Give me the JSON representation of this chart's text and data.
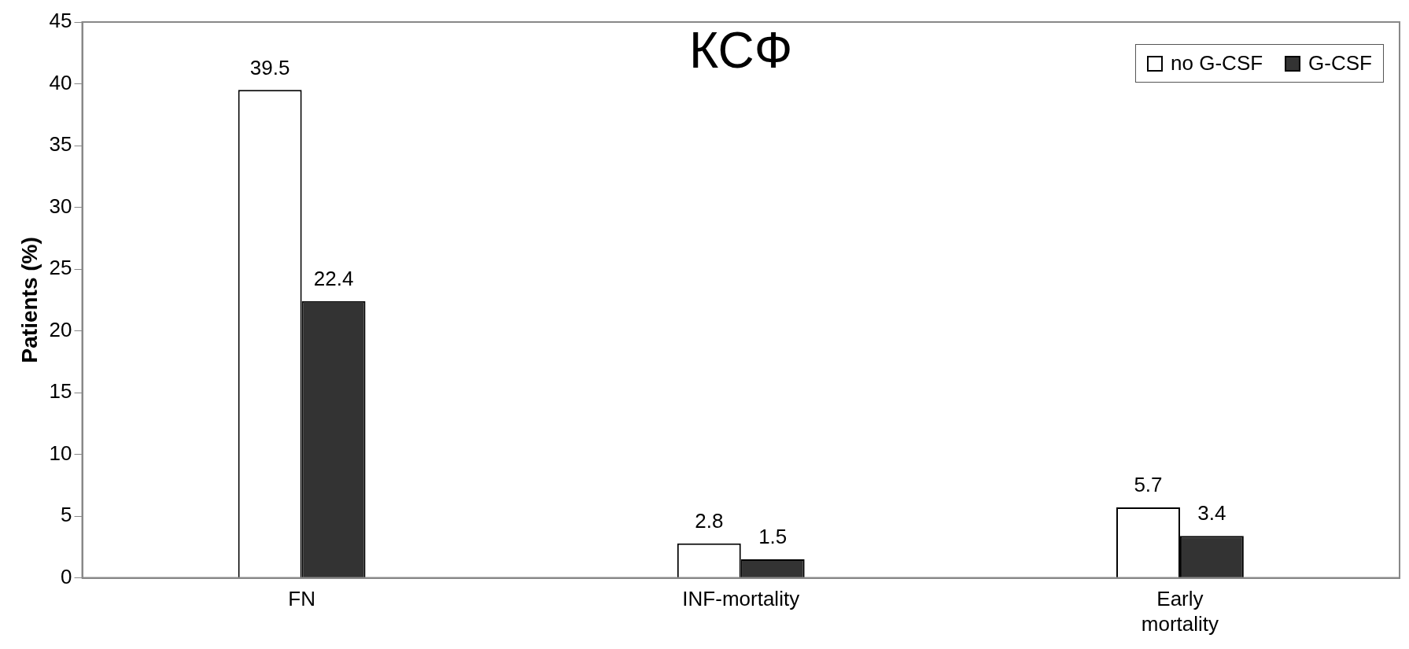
{
  "chart_data": {
    "type": "bar",
    "title": "КСФ",
    "ylabel": "Patients (%)",
    "categories": [
      "FN",
      "INF-mortality",
      "Early mortality"
    ],
    "series": [
      {
        "name": "no G-CSF",
        "color": "#ffffff",
        "values": [
          39.5,
          2.8,
          5.7
        ]
      },
      {
        "name": "G-CSF",
        "color": "#333333",
        "values": [
          22.4,
          1.5,
          3.4
        ]
      }
    ],
    "ylim": [
      0,
      45
    ],
    "yticks": [
      0,
      5,
      10,
      15,
      20,
      25,
      30,
      35,
      40,
      45
    ],
    "grid": false,
    "legend": "top right",
    "data_labels": true
  }
}
